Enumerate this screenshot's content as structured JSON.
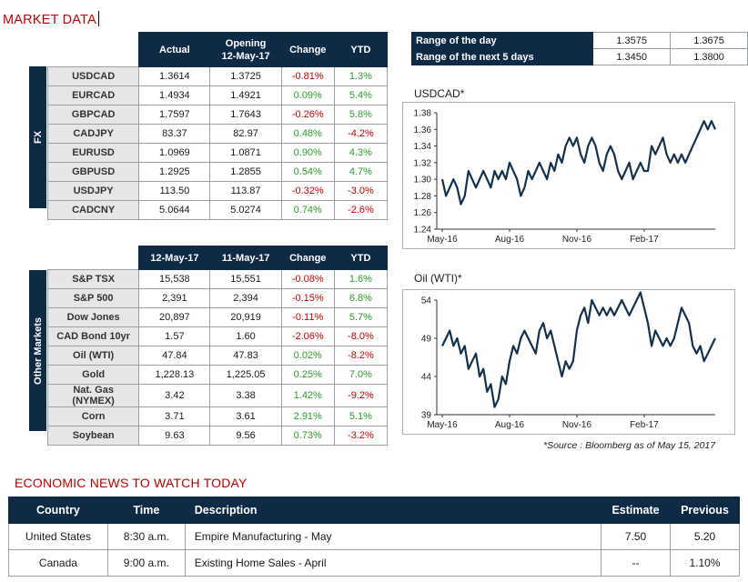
{
  "page": {
    "title": "MARKET DATA"
  },
  "fx": {
    "side_label": "FX",
    "headers": [
      "Actual",
      "Opening\n12-May-17",
      "Change",
      "YTD"
    ],
    "rows": [
      {
        "name": "USDCAD",
        "actual": "1.3614",
        "opening": "1.3725",
        "change": "-0.81%",
        "ytd": "1.3%"
      },
      {
        "name": "EURCAD",
        "actual": "1.4934",
        "opening": "1.4921",
        "change": "0.09%",
        "ytd": "5.4%"
      },
      {
        "name": "GBPCAD",
        "actual": "1.7597",
        "opening": "1.7643",
        "change": "-0.26%",
        "ytd": "5.8%"
      },
      {
        "name": "CADJPY",
        "actual": "83.37",
        "opening": "82.97",
        "change": "0.48%",
        "ytd": "-4.2%"
      },
      {
        "name": "EURUSD",
        "actual": "1.0969",
        "opening": "1.0871",
        "change": "0.90%",
        "ytd": "4.3%"
      },
      {
        "name": "GBPUSD",
        "actual": "1.2925",
        "opening": "1.2855",
        "change": "0.54%",
        "ytd": "4.7%"
      },
      {
        "name": "USDJPY",
        "actual": "113.50",
        "opening": "113.87",
        "change": "-0.32%",
        "ytd": "-3.0%"
      },
      {
        "name": "CADCNY",
        "actual": "5.0644",
        "opening": "5.0274",
        "change": "0.74%",
        "ytd": "-2.6%"
      }
    ]
  },
  "range": {
    "rows": [
      {
        "label": "Range of the day",
        "low": "1.3575",
        "high": "1.3675"
      },
      {
        "label": "Range of the next 5 days",
        "low": "1.3450",
        "high": "1.3800"
      }
    ]
  },
  "other": {
    "side_label": "Other Markets",
    "headers": [
      "12-May-17",
      "11-May-17",
      "Change",
      "YTD"
    ],
    "rows": [
      {
        "name": "S&P TSX",
        "a": "15,538",
        "b": "15,551",
        "change": "-0.08%",
        "ytd": "1.6%"
      },
      {
        "name": "S&P 500",
        "a": "2,391",
        "b": "2,394",
        "change": "-0.15%",
        "ytd": "6.8%"
      },
      {
        "name": "Dow Jones",
        "a": "20,897",
        "b": "20,919",
        "change": "-0.11%",
        "ytd": "5.7%"
      },
      {
        "name": "CAD Bond 10yr",
        "a": "1.57",
        "b": "1.60",
        "change": "-2.06%",
        "ytd": "-8.0%"
      },
      {
        "name": "Oil (WTI)",
        "a": "47.84",
        "b": "47.83",
        "change": "0.02%",
        "ytd": "-8.2%"
      },
      {
        "name": "Gold",
        "a": "1,228.13",
        "b": "1,225.05",
        "change": "0.25%",
        "ytd": "7.0%"
      },
      {
        "name": "Nat. Gas (NYMEX)",
        "a": "3.42",
        "b": "3.38",
        "change": "1.42%",
        "ytd": "-9.2%"
      },
      {
        "name": "Corn",
        "a": "3.71",
        "b": "3.61",
        "change": "2.91%",
        "ytd": "5.1%"
      },
      {
        "name": "Soybean",
        "a": "9.63",
        "b": "9.56",
        "change": "0.73%",
        "ytd": "-3.2%"
      }
    ]
  },
  "source_note": "*Source : Bloomberg as of  May 15, 2017",
  "colors": {
    "navy": "#0f2a45",
    "positive": "#2e9a2e",
    "negative": "#d00000",
    "title_red": "#c00000",
    "line": "#14304f"
  },
  "chart_data": [
    {
      "type": "line",
      "title": "USDCAD*",
      "x_tick_labels": [
        "May-16",
        "Aug-16",
        "Nov-16",
        "Feb-17"
      ],
      "y_ticks": [
        1.24,
        1.26,
        1.28,
        1.3,
        1.32,
        1.34,
        1.36,
        1.38
      ],
      "ylim": [
        1.24,
        1.38
      ],
      "grid": false,
      "values": [
        1.3,
        1.28,
        1.29,
        1.3,
        1.29,
        1.27,
        1.28,
        1.31,
        1.3,
        1.29,
        1.3,
        1.31,
        1.3,
        1.29,
        1.31,
        1.3,
        1.31,
        1.3,
        1.32,
        1.31,
        1.3,
        1.28,
        1.29,
        1.31,
        1.3,
        1.31,
        1.32,
        1.31,
        1.3,
        1.32,
        1.31,
        1.33,
        1.32,
        1.34,
        1.35,
        1.34,
        1.35,
        1.33,
        1.32,
        1.34,
        1.35,
        1.34,
        1.32,
        1.31,
        1.33,
        1.34,
        1.33,
        1.31,
        1.3,
        1.31,
        1.32,
        1.3,
        1.31,
        1.32,
        1.31,
        1.31,
        1.34,
        1.33,
        1.34,
        1.35,
        1.33,
        1.32,
        1.33,
        1.32,
        1.33,
        1.32,
        1.33,
        1.34,
        1.35,
        1.36,
        1.37,
        1.36,
        1.37,
        1.36
      ]
    },
    {
      "type": "line",
      "title": "Oil (WTI)*",
      "x_tick_labels": [
        "May-16",
        "Aug-16",
        "Nov-16",
        "Feb-17"
      ],
      "y_ticks": [
        39,
        44,
        49,
        54
      ],
      "ylim": [
        39,
        54
      ],
      "grid": false,
      "values": [
        48,
        49,
        50,
        48,
        49,
        47,
        48,
        45,
        46,
        47,
        44,
        45,
        42,
        43,
        40,
        41,
        44,
        43,
        46,
        48,
        47,
        49,
        50,
        49,
        48,
        47,
        50,
        51,
        49,
        50,
        48,
        46,
        44,
        46,
        45,
        46,
        50,
        52,
        53,
        51,
        54,
        53,
        52,
        53,
        52,
        53,
        52,
        53,
        54,
        53,
        52,
        53,
        54,
        55,
        53,
        51,
        48,
        50,
        49,
        48,
        49,
        48,
        49,
        51,
        53,
        52,
        51,
        48,
        47,
        48,
        46,
        47,
        48,
        49
      ]
    }
  ],
  "economic": {
    "title": "ECONOMIC NEWS TO WATCH TODAY",
    "headers": [
      "Country",
      "Time",
      "Description",
      "Estimate",
      "Previous"
    ],
    "rows": [
      {
        "country": "United States",
        "time": "8:30 a.m.",
        "description": "Empire Manufacturing - May",
        "estimate": "7.50",
        "previous": "5.20"
      },
      {
        "country": "Canada",
        "time": "9:00 a.m.",
        "description": "Existing Home Sales - April",
        "estimate": "--",
        "previous": "1.10%"
      }
    ]
  }
}
